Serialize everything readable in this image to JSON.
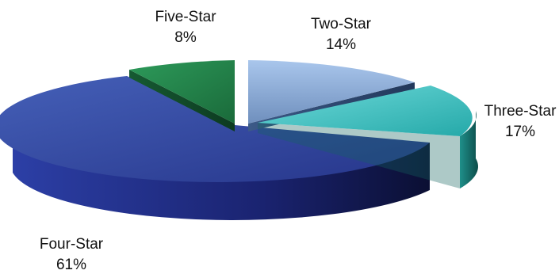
{
  "chart_data": {
    "type": "pie",
    "style": "3d-exploded",
    "title": "",
    "slices": [
      {
        "name": "Two-Star",
        "value": 14,
        "label": "14%",
        "color": "#8aaedc"
      },
      {
        "name": "Three-Star",
        "value": 17,
        "label": "17%",
        "color": "#3fc4c4"
      },
      {
        "name": "Four-Star",
        "value": 61,
        "label": "61%",
        "color": "#2b3f9a"
      },
      {
        "name": "Five-Star",
        "value": 8,
        "label": "8%",
        "color": "#1f7a45"
      }
    ]
  }
}
